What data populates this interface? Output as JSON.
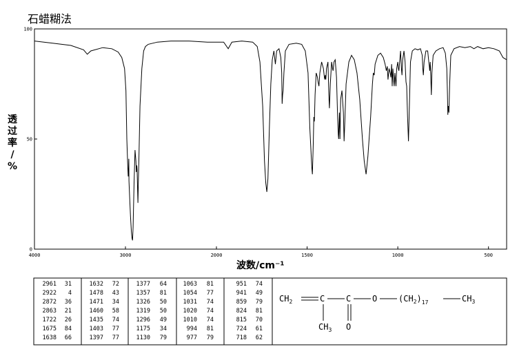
{
  "title": "石蜡糊法",
  "chart_data": {
    "type": "line",
    "title": "石蜡糊法",
    "xlabel": "波数/cm⁻¹",
    "ylabel": "透过率/%",
    "xlim": [
      4000,
      400
    ],
    "ylim": [
      0,
      100
    ],
    "x_ticks": [
      4000,
      3000,
      2000,
      1500,
      1000,
      500
    ],
    "y_ticks": [
      0,
      50,
      100
    ],
    "grid": false,
    "series": [
      {
        "values": [
          [
            4000,
            94.5
          ],
          [
            3800,
            93.5
          ],
          [
            3600,
            92.5
          ],
          [
            3460,
            90.5
          ],
          [
            3420,
            88.5
          ],
          [
            3380,
            90
          ],
          [
            3250,
            91.5
          ],
          [
            3150,
            91
          ],
          [
            3080,
            89.5
          ],
          [
            3040,
            87
          ],
          [
            3010,
            82
          ],
          [
            2995,
            72
          ],
          [
            2985,
            50
          ],
          [
            2975,
            38
          ],
          [
            2970,
            33
          ],
          [
            2966,
            36
          ],
          [
            2963,
            41
          ],
          [
            2961,
            31
          ],
          [
            2955,
            25
          ],
          [
            2945,
            15
          ],
          [
            2935,
            8
          ],
          [
            2928,
            5
          ],
          [
            2922,
            4
          ],
          [
            2916,
            10
          ],
          [
            2905,
            30
          ],
          [
            2895,
            45
          ],
          [
            2885,
            40
          ],
          [
            2880,
            35
          ],
          [
            2875,
            38
          ],
          [
            2872,
            36
          ],
          [
            2868,
            30
          ],
          [
            2863,
            21
          ],
          [
            2858,
            30
          ],
          [
            2850,
            45
          ],
          [
            2840,
            65
          ],
          [
            2820,
            82
          ],
          [
            2800,
            90
          ],
          [
            2780,
            92
          ],
          [
            2750,
            93
          ],
          [
            2650,
            94
          ],
          [
            2500,
            94.5
          ],
          [
            2300,
            94.5
          ],
          [
            2100,
            94
          ],
          [
            1960,
            94
          ],
          [
            1935,
            91
          ],
          [
            1915,
            94
          ],
          [
            1860,
            94.5
          ],
          [
            1800,
            94
          ],
          [
            1775,
            92
          ],
          [
            1760,
            85
          ],
          [
            1745,
            65
          ],
          [
            1735,
            40
          ],
          [
            1728,
            30
          ],
          [
            1722,
            26
          ],
          [
            1716,
            32
          ],
          [
            1708,
            55
          ],
          [
            1700,
            75
          ],
          [
            1692,
            86
          ],
          [
            1683,
            90
          ],
          [
            1675,
            84
          ],
          [
            1668,
            90
          ],
          [
            1655,
            91
          ],
          [
            1645,
            87
          ],
          [
            1640,
            80
          ],
          [
            1638,
            66
          ],
          [
            1635,
            70
          ],
          [
            1632,
            72
          ],
          [
            1628,
            80
          ],
          [
            1620,
            90
          ],
          [
            1600,
            93
          ],
          [
            1560,
            93.5
          ],
          [
            1530,
            93
          ],
          [
            1510,
            90
          ],
          [
            1495,
            80
          ],
          [
            1485,
            55
          ],
          [
            1478,
            43
          ],
          [
            1474,
            37
          ],
          [
            1471,
            34
          ],
          [
            1466,
            48
          ],
          [
            1463,
            60
          ],
          [
            1460,
            58
          ],
          [
            1456,
            70
          ],
          [
            1450,
            80
          ],
          [
            1443,
            78
          ],
          [
            1440,
            76
          ],
          [
            1435,
            74
          ],
          [
            1430,
            80
          ],
          [
            1420,
            85
          ],
          [
            1410,
            82
          ],
          [
            1405,
            78
          ],
          [
            1403,
            77
          ],
          [
            1400,
            79
          ],
          [
            1397,
            77
          ],
          [
            1393,
            82
          ],
          [
            1385,
            85
          ],
          [
            1380,
            70
          ],
          [
            1377,
            64
          ],
          [
            1372,
            75
          ],
          [
            1365,
            85
          ],
          [
            1360,
            82
          ],
          [
            1357,
            81
          ],
          [
            1352,
            85
          ],
          [
            1345,
            86
          ],
          [
            1338,
            78
          ],
          [
            1332,
            60
          ],
          [
            1328,
            52
          ],
          [
            1326,
            50
          ],
          [
            1322,
            62
          ],
          [
            1319,
            50
          ],
          [
            1315,
            68
          ],
          [
            1308,
            72
          ],
          [
            1300,
            62
          ],
          [
            1296,
            49
          ],
          [
            1292,
            58
          ],
          [
            1285,
            75
          ],
          [
            1270,
            85
          ],
          [
            1255,
            88
          ],
          [
            1240,
            86
          ],
          [
            1225,
            80
          ],
          [
            1210,
            68
          ],
          [
            1195,
            50
          ],
          [
            1185,
            40
          ],
          [
            1175,
            34
          ],
          [
            1165,
            42
          ],
          [
            1150,
            60
          ],
          [
            1140,
            75
          ],
          [
            1135,
            80
          ],
          [
            1130,
            79
          ],
          [
            1125,
            84
          ],
          [
            1110,
            88
          ],
          [
            1095,
            89
          ],
          [
            1080,
            87
          ],
          [
            1070,
            84
          ],
          [
            1063,
            81
          ],
          [
            1058,
            83
          ],
          [
            1054,
            77
          ],
          [
            1048,
            82
          ],
          [
            1042,
            80
          ],
          [
            1038,
            78
          ],
          [
            1034,
            84
          ],
          [
            1031,
            74
          ],
          [
            1027,
            82
          ],
          [
            1022,
            76
          ],
          [
            1020,
            74
          ],
          [
            1016,
            80
          ],
          [
            1013,
            77
          ],
          [
            1010,
            74
          ],
          [
            1006,
            82
          ],
          [
            1000,
            85
          ],
          [
            997,
            82
          ],
          [
            994,
            81
          ],
          [
            990,
            85
          ],
          [
            985,
            90
          ],
          [
            980,
            82
          ],
          [
            977,
            79
          ],
          [
            973,
            86
          ],
          [
            966,
            90
          ],
          [
            960,
            85
          ],
          [
            955,
            76
          ],
          [
            951,
            74
          ],
          [
            946,
            60
          ],
          [
            941,
            49
          ],
          [
            937,
            62
          ],
          [
            930,
            85
          ],
          [
            920,
            90
          ],
          [
            905,
            91
          ],
          [
            890,
            90.5
          ],
          [
            875,
            91
          ],
          [
            865,
            88
          ],
          [
            862,
            82
          ],
          [
            859,
            79
          ],
          [
            855,
            85
          ],
          [
            845,
            90
          ],
          [
            835,
            90
          ],
          [
            829,
            85
          ],
          [
            826,
            83
          ],
          [
            824,
            81
          ],
          [
            821,
            85
          ],
          [
            818,
            78
          ],
          [
            815,
            70
          ],
          [
            812,
            80
          ],
          [
            805,
            88
          ],
          [
            790,
            90
          ],
          [
            770,
            91
          ],
          [
            750,
            91.5
          ],
          [
            738,
            89
          ],
          [
            730,
            82
          ],
          [
            726,
            70
          ],
          [
            724,
            61
          ],
          [
            722,
            65
          ],
          [
            718,
            62
          ],
          [
            714,
            75
          ],
          [
            708,
            88
          ],
          [
            690,
            91
          ],
          [
            660,
            92
          ],
          [
            630,
            91.5
          ],
          [
            600,
            92
          ],
          [
            580,
            91
          ],
          [
            560,
            92
          ],
          [
            530,
            91
          ],
          [
            500,
            91.5
          ],
          [
            470,
            91
          ],
          [
            440,
            90
          ],
          [
            420,
            87
          ],
          [
            400,
            86
          ]
        ]
      }
    ]
  },
  "peak_table": {
    "columns": [
      [
        [
          "2961",
          "31"
        ],
        [
          "2922",
          "4"
        ],
        [
          "2872",
          "36"
        ],
        [
          "2863",
          "21"
        ],
        [
          "1722",
          "26"
        ],
        [
          "1675",
          "84"
        ],
        [
          "1638",
          "66"
        ]
      ],
      [
        [
          "1632",
          "72"
        ],
        [
          "1478",
          "43"
        ],
        [
          "1471",
          "34"
        ],
        [
          "1460",
          "58"
        ],
        [
          "1435",
          "74"
        ],
        [
          "1403",
          "77"
        ],
        [
          "1397",
          "77"
        ]
      ],
      [
        [
          "1377",
          "64"
        ],
        [
          "1357",
          "81"
        ],
        [
          "1326",
          "50"
        ],
        [
          "1319",
          "50"
        ],
        [
          "1296",
          "49"
        ],
        [
          "1175",
          "34"
        ],
        [
          "1130",
          "79"
        ]
      ],
      [
        [
          "1063",
          "81"
        ],
        [
          "1054",
          "77"
        ],
        [
          "1031",
          "74"
        ],
        [
          "1020",
          "74"
        ],
        [
          "1010",
          "74"
        ],
        [
          "994",
          "81"
        ],
        [
          "977",
          "79"
        ]
      ],
      [
        [
          "951",
          "74"
        ],
        [
          "941",
          "49"
        ],
        [
          "859",
          "79"
        ],
        [
          "824",
          "81"
        ],
        [
          "815",
          "70"
        ],
        [
          "724",
          "61"
        ],
        [
          "718",
          "62"
        ]
      ]
    ]
  },
  "structure": {
    "main_chain": [
      "CH",
      "2",
      "C",
      "C",
      "O",
      "(CH",
      "2",
      ")",
      "17",
      "CH",
      "3"
    ],
    "substituents": [
      "CH",
      "3",
      "O"
    ]
  }
}
